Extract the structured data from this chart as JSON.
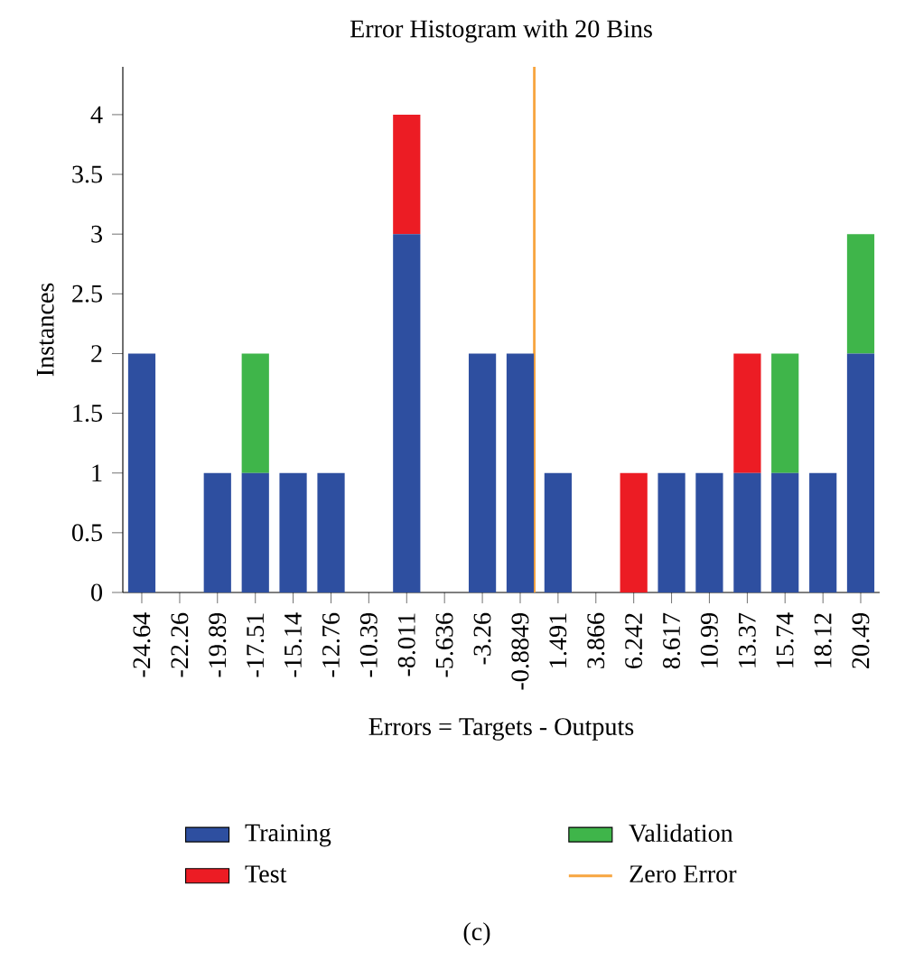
{
  "chart_data": {
    "type": "bar",
    "title": "Error Histogram with 20 Bins",
    "xlabel": "Errors = Targets - Outputs",
    "ylabel": "Instances",
    "x": [
      -24.64,
      -22.26,
      -19.89,
      -17.51,
      -15.14,
      -12.76,
      -10.39,
      -8.011,
      -5.636,
      -3.26,
      -0.8849,
      1.491,
      3.866,
      6.242,
      8.617,
      10.99,
      13.37,
      15.74,
      18.12,
      20.49
    ],
    "stacked": true,
    "series": [
      {
        "name": "Training",
        "color": "#2e4fa0",
        "values": [
          2,
          0,
          1,
          1,
          1,
          1,
          0,
          3,
          0,
          2,
          2,
          1,
          0,
          0,
          1,
          1,
          1,
          1,
          1,
          2
        ]
      },
      {
        "name": "Validation",
        "color": "#3fb54a",
        "values": [
          0,
          0,
          0,
          1,
          0,
          0,
          0,
          0,
          0,
          0,
          0,
          0,
          0,
          0,
          0,
          0,
          0,
          1,
          0,
          1
        ]
      },
      {
        "name": "Test",
        "color": "#ec1c24",
        "values": [
          0,
          0,
          0,
          0,
          0,
          0,
          0,
          1,
          0,
          0,
          0,
          0,
          0,
          1,
          0,
          0,
          1,
          0,
          0,
          0
        ]
      }
    ],
    "xlim": [
      -25.83,
      21.68
    ],
    "xticks": [
      -24.64,
      -22.26,
      -19.89,
      -17.51,
      -15.14,
      -12.76,
      -10.39,
      -8.011,
      -5.636,
      -3.26,
      -0.8849,
      1.491,
      3.866,
      6.242,
      8.617,
      10.99,
      13.37,
      15.74,
      18.12,
      20.49
    ],
    "ylim": [
      0,
      4.4
    ],
    "yticks": [
      0,
      0.5,
      1,
      1.5,
      2,
      2.5,
      3,
      3.5,
      4
    ],
    "ref_lines": [
      {
        "axis": "x",
        "value": 0,
        "label": "Zero Error",
        "color": "#f7a540"
      }
    ],
    "legend": "bottom",
    "annotations": [
      "(c)"
    ]
  }
}
